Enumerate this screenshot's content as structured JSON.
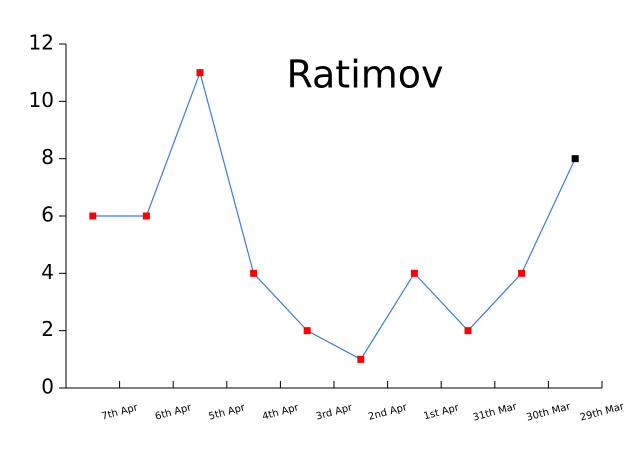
{
  "chart_data": {
    "type": "line",
    "title": "Ratimov",
    "title_color": "#e020c0",
    "categories": [
      "7th Apr",
      "6th Apr",
      "5th Apr",
      "4th Apr",
      "3rd Apr",
      "2nd Apr",
      "1st Apr",
      "31th Mar",
      "30th Mar",
      "29th Mar"
    ],
    "series": [
      {
        "color": "#3b7ddd",
        "values": [
          6,
          6,
          11,
          4,
          2,
          1,
          4,
          2,
          4,
          8
        ],
        "marker_colors": [
          "#ff0000",
          "#ff0000",
          "#ff0000",
          "#ff0000",
          "#ff0000",
          "#ff0000",
          "#ff0000",
          "#ff0000",
          "#ff0000",
          "#000000"
        ]
      }
    ],
    "ylim": [
      0,
      12
    ],
    "yticks": [
      0,
      2,
      4,
      6,
      8,
      10,
      12
    ]
  }
}
